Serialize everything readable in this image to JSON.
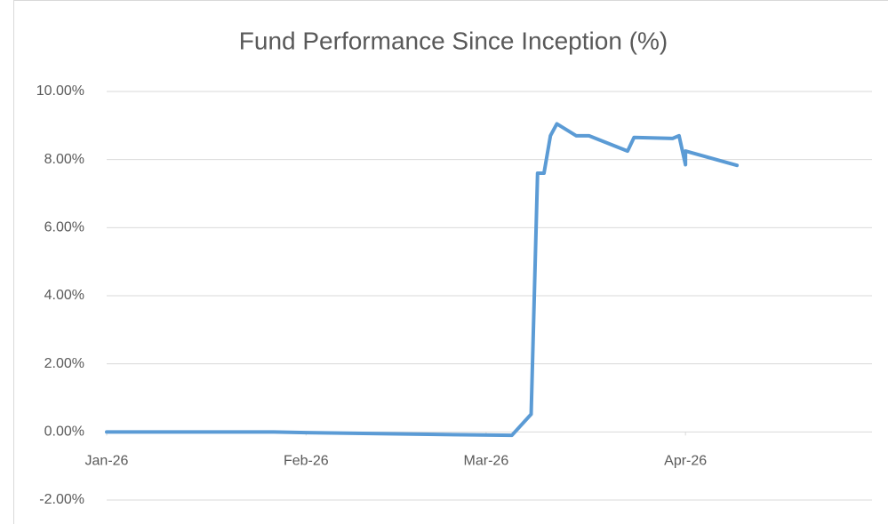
{
  "chart_data": {
    "type": "line",
    "title": "Fund Performance Since Inception (%)",
    "x": [
      0,
      26,
      31,
      50,
      63,
      66,
      67,
      68,
      69,
      70,
      73,
      75,
      81,
      82,
      88,
      89,
      90,
      90,
      98
    ],
    "series": [
      {
        "name": "Fund Performance",
        "color": "#5b9bd5",
        "values": [
          0,
          0,
          -0.02,
          -0.07,
          -0.1,
          0.52,
          7.6,
          7.6,
          8.7,
          9.05,
          8.7,
          8.7,
          8.25,
          8.65,
          8.62,
          8.7,
          7.85,
          8.25,
          7.83
        ]
      }
    ],
    "xlim": [
      0,
      119
    ],
    "xticks": [
      {
        "value": 0,
        "label": "Jan-26"
      },
      {
        "value": 31,
        "label": "Feb-26"
      },
      {
        "value": 59,
        "label": "Mar-26"
      },
      {
        "value": 90,
        "label": "Apr-26"
      }
    ],
    "ylim": [
      -2,
      10
    ],
    "yticks": [
      {
        "value": -2,
        "label": "-2.00%"
      },
      {
        "value": 0,
        "label": "0.00%"
      },
      {
        "value": 2,
        "label": "2.00%"
      },
      {
        "value": 4,
        "label": "4.00%"
      },
      {
        "value": 6,
        "label": "6.00%"
      },
      {
        "value": 8,
        "label": "8.00%"
      },
      {
        "value": 10,
        "label": "10.00%"
      }
    ],
    "grid": true
  }
}
